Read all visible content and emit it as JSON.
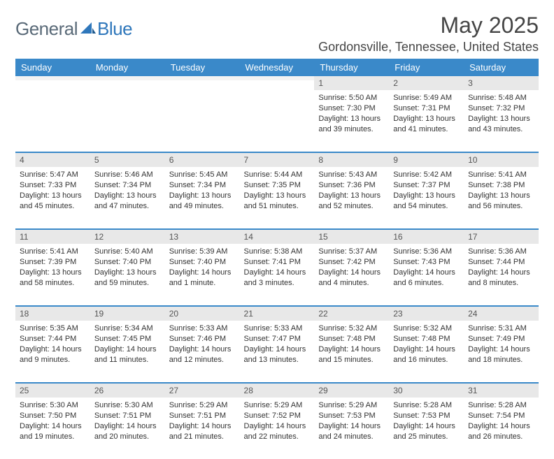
{
  "brand": {
    "part1": "General",
    "part2": "Blue"
  },
  "title": "May 2025",
  "location": "Gordonsville, Tennessee, United States",
  "colors": {
    "header_bg": "#3a89c9",
    "header_text": "#ffffff",
    "daynum_bg": "#e8e8e8",
    "separator": "#3a89c9",
    "brand_gray": "#5a6a78",
    "brand_blue": "#2f77bb"
  },
  "weekdays": [
    "Sunday",
    "Monday",
    "Tuesday",
    "Wednesday",
    "Thursday",
    "Friday",
    "Saturday"
  ],
  "weeks": [
    [
      {
        "n": "",
        "sr": "",
        "ss": "",
        "dl": ""
      },
      {
        "n": "",
        "sr": "",
        "ss": "",
        "dl": ""
      },
      {
        "n": "",
        "sr": "",
        "ss": "",
        "dl": ""
      },
      {
        "n": "",
        "sr": "",
        "ss": "",
        "dl": ""
      },
      {
        "n": "1",
        "sr": "Sunrise: 5:50 AM",
        "ss": "Sunset: 7:30 PM",
        "dl": "Daylight: 13 hours and 39 minutes."
      },
      {
        "n": "2",
        "sr": "Sunrise: 5:49 AM",
        "ss": "Sunset: 7:31 PM",
        "dl": "Daylight: 13 hours and 41 minutes."
      },
      {
        "n": "3",
        "sr": "Sunrise: 5:48 AM",
        "ss": "Sunset: 7:32 PM",
        "dl": "Daylight: 13 hours and 43 minutes."
      }
    ],
    [
      {
        "n": "4",
        "sr": "Sunrise: 5:47 AM",
        "ss": "Sunset: 7:33 PM",
        "dl": "Daylight: 13 hours and 45 minutes."
      },
      {
        "n": "5",
        "sr": "Sunrise: 5:46 AM",
        "ss": "Sunset: 7:34 PM",
        "dl": "Daylight: 13 hours and 47 minutes."
      },
      {
        "n": "6",
        "sr": "Sunrise: 5:45 AM",
        "ss": "Sunset: 7:34 PM",
        "dl": "Daylight: 13 hours and 49 minutes."
      },
      {
        "n": "7",
        "sr": "Sunrise: 5:44 AM",
        "ss": "Sunset: 7:35 PM",
        "dl": "Daylight: 13 hours and 51 minutes."
      },
      {
        "n": "8",
        "sr": "Sunrise: 5:43 AM",
        "ss": "Sunset: 7:36 PM",
        "dl": "Daylight: 13 hours and 52 minutes."
      },
      {
        "n": "9",
        "sr": "Sunrise: 5:42 AM",
        "ss": "Sunset: 7:37 PM",
        "dl": "Daylight: 13 hours and 54 minutes."
      },
      {
        "n": "10",
        "sr": "Sunrise: 5:41 AM",
        "ss": "Sunset: 7:38 PM",
        "dl": "Daylight: 13 hours and 56 minutes."
      }
    ],
    [
      {
        "n": "11",
        "sr": "Sunrise: 5:41 AM",
        "ss": "Sunset: 7:39 PM",
        "dl": "Daylight: 13 hours and 58 minutes."
      },
      {
        "n": "12",
        "sr": "Sunrise: 5:40 AM",
        "ss": "Sunset: 7:40 PM",
        "dl": "Daylight: 13 hours and 59 minutes."
      },
      {
        "n": "13",
        "sr": "Sunrise: 5:39 AM",
        "ss": "Sunset: 7:40 PM",
        "dl": "Daylight: 14 hours and 1 minute."
      },
      {
        "n": "14",
        "sr": "Sunrise: 5:38 AM",
        "ss": "Sunset: 7:41 PM",
        "dl": "Daylight: 14 hours and 3 minutes."
      },
      {
        "n": "15",
        "sr": "Sunrise: 5:37 AM",
        "ss": "Sunset: 7:42 PM",
        "dl": "Daylight: 14 hours and 4 minutes."
      },
      {
        "n": "16",
        "sr": "Sunrise: 5:36 AM",
        "ss": "Sunset: 7:43 PM",
        "dl": "Daylight: 14 hours and 6 minutes."
      },
      {
        "n": "17",
        "sr": "Sunrise: 5:36 AM",
        "ss": "Sunset: 7:44 PM",
        "dl": "Daylight: 14 hours and 8 minutes."
      }
    ],
    [
      {
        "n": "18",
        "sr": "Sunrise: 5:35 AM",
        "ss": "Sunset: 7:44 PM",
        "dl": "Daylight: 14 hours and 9 minutes."
      },
      {
        "n": "19",
        "sr": "Sunrise: 5:34 AM",
        "ss": "Sunset: 7:45 PM",
        "dl": "Daylight: 14 hours and 11 minutes."
      },
      {
        "n": "20",
        "sr": "Sunrise: 5:33 AM",
        "ss": "Sunset: 7:46 PM",
        "dl": "Daylight: 14 hours and 12 minutes."
      },
      {
        "n": "21",
        "sr": "Sunrise: 5:33 AM",
        "ss": "Sunset: 7:47 PM",
        "dl": "Daylight: 14 hours and 13 minutes."
      },
      {
        "n": "22",
        "sr": "Sunrise: 5:32 AM",
        "ss": "Sunset: 7:48 PM",
        "dl": "Daylight: 14 hours and 15 minutes."
      },
      {
        "n": "23",
        "sr": "Sunrise: 5:32 AM",
        "ss": "Sunset: 7:48 PM",
        "dl": "Daylight: 14 hours and 16 minutes."
      },
      {
        "n": "24",
        "sr": "Sunrise: 5:31 AM",
        "ss": "Sunset: 7:49 PM",
        "dl": "Daylight: 14 hours and 18 minutes."
      }
    ],
    [
      {
        "n": "25",
        "sr": "Sunrise: 5:30 AM",
        "ss": "Sunset: 7:50 PM",
        "dl": "Daylight: 14 hours and 19 minutes."
      },
      {
        "n": "26",
        "sr": "Sunrise: 5:30 AM",
        "ss": "Sunset: 7:51 PM",
        "dl": "Daylight: 14 hours and 20 minutes."
      },
      {
        "n": "27",
        "sr": "Sunrise: 5:29 AM",
        "ss": "Sunset: 7:51 PM",
        "dl": "Daylight: 14 hours and 21 minutes."
      },
      {
        "n": "28",
        "sr": "Sunrise: 5:29 AM",
        "ss": "Sunset: 7:52 PM",
        "dl": "Daylight: 14 hours and 22 minutes."
      },
      {
        "n": "29",
        "sr": "Sunrise: 5:29 AM",
        "ss": "Sunset: 7:53 PM",
        "dl": "Daylight: 14 hours and 24 minutes."
      },
      {
        "n": "30",
        "sr": "Sunrise: 5:28 AM",
        "ss": "Sunset: 7:53 PM",
        "dl": "Daylight: 14 hours and 25 minutes."
      },
      {
        "n": "31",
        "sr": "Sunrise: 5:28 AM",
        "ss": "Sunset: 7:54 PM",
        "dl": "Daylight: 14 hours and 26 minutes."
      }
    ]
  ]
}
